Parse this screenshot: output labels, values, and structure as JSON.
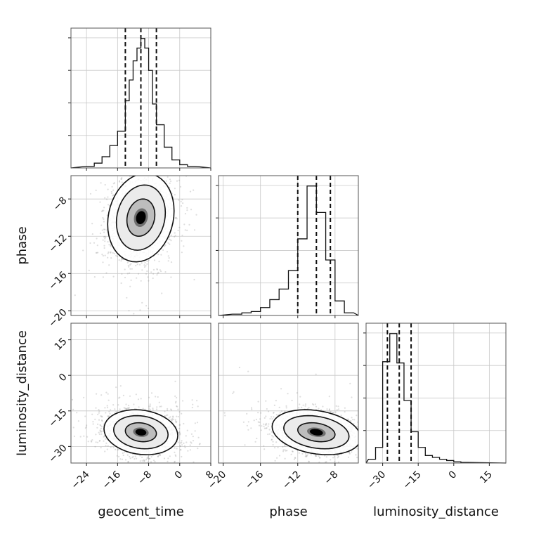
{
  "chart_data": {
    "type": "corner",
    "parameters": [
      "geocent_time",
      "phase",
      "luminosity_distance"
    ],
    "grid": true,
    "colors": {
      "points": "#8a8a8a",
      "contour": "#111111",
      "density_dark": "#000000"
    },
    "axes": {
      "geocent_time": {
        "range": [
          -28,
          8
        ],
        "ticks": [
          -24,
          -16,
          -8,
          0,
          8
        ]
      },
      "phase": {
        "range": [
          -20.5,
          -5.5
        ],
        "ticks": [
          -20,
          -16,
          -12,
          -8
        ]
      },
      "luminosity_distance": {
        "range": [
          -37,
          22
        ],
        "ticks": [
          -30,
          -15,
          0,
          15
        ]
      }
    },
    "hist1d": [
      {
        "param": "geocent_time",
        "bin_edges": [
          -24,
          -22,
          -20,
          -18,
          -16,
          -14,
          -13,
          -12,
          -11,
          -10,
          -9,
          -8,
          -7,
          -6,
          -4,
          -2,
          0,
          2,
          4
        ],
        "counts": [
          1,
          3,
          7,
          14,
          23,
          42,
          55,
          67,
          75,
          81,
          75,
          61,
          40,
          27,
          13,
          5,
          2,
          1
        ],
        "quantiles": [
          -14,
          -10,
          -6
        ]
      },
      {
        "param": "phase",
        "bin_edges": [
          -19,
          -18,
          -17,
          -16,
          -15,
          -14,
          -13,
          -12,
          -11,
          -10,
          -9,
          -8,
          -7,
          -6
        ],
        "counts": [
          1,
          2,
          3,
          6,
          12,
          20,
          34,
          58,
          98,
          78,
          42,
          11,
          2
        ],
        "quantiles": [
          -12,
          -10,
          -8.5
        ]
      },
      {
        "param": "luminosity_distance",
        "bin_edges": [
          -36,
          -33,
          -30,
          -27,
          -24,
          -21,
          -18,
          -15,
          -12,
          -9,
          -6,
          -3,
          0,
          3,
          6
        ],
        "counts": [
          6,
          25,
          162,
          207,
          160,
          100,
          50,
          25,
          12,
          9,
          6,
          4,
          2,
          1
        ],
        "quantiles": [
          -28,
          -23,
          -18
        ]
      }
    ],
    "hist2d": [
      {
        "x": "geocent_time",
        "y": "phase",
        "center": [
          -10,
          -10
        ],
        "sigma": [
          4.5,
          2.5
        ],
        "corr": 0.15,
        "levels": [
          0.4,
          0.8,
          1.4,
          1.9
        ]
      },
      {
        "x": "geocent_time",
        "y": "luminosity_distance",
        "center": [
          -10,
          -24
        ],
        "sigma": [
          5,
          5
        ],
        "corr": -0.15,
        "levels": [
          0.4,
          0.8,
          1.4,
          1.9
        ]
      },
      {
        "x": "phase",
        "y": "luminosity_distance",
        "center": [
          -10,
          -24
        ],
        "sigma": [
          2.5,
          5
        ],
        "corr": -0.25,
        "levels": [
          0.4,
          0.8,
          1.4,
          1.9
        ]
      }
    ]
  }
}
